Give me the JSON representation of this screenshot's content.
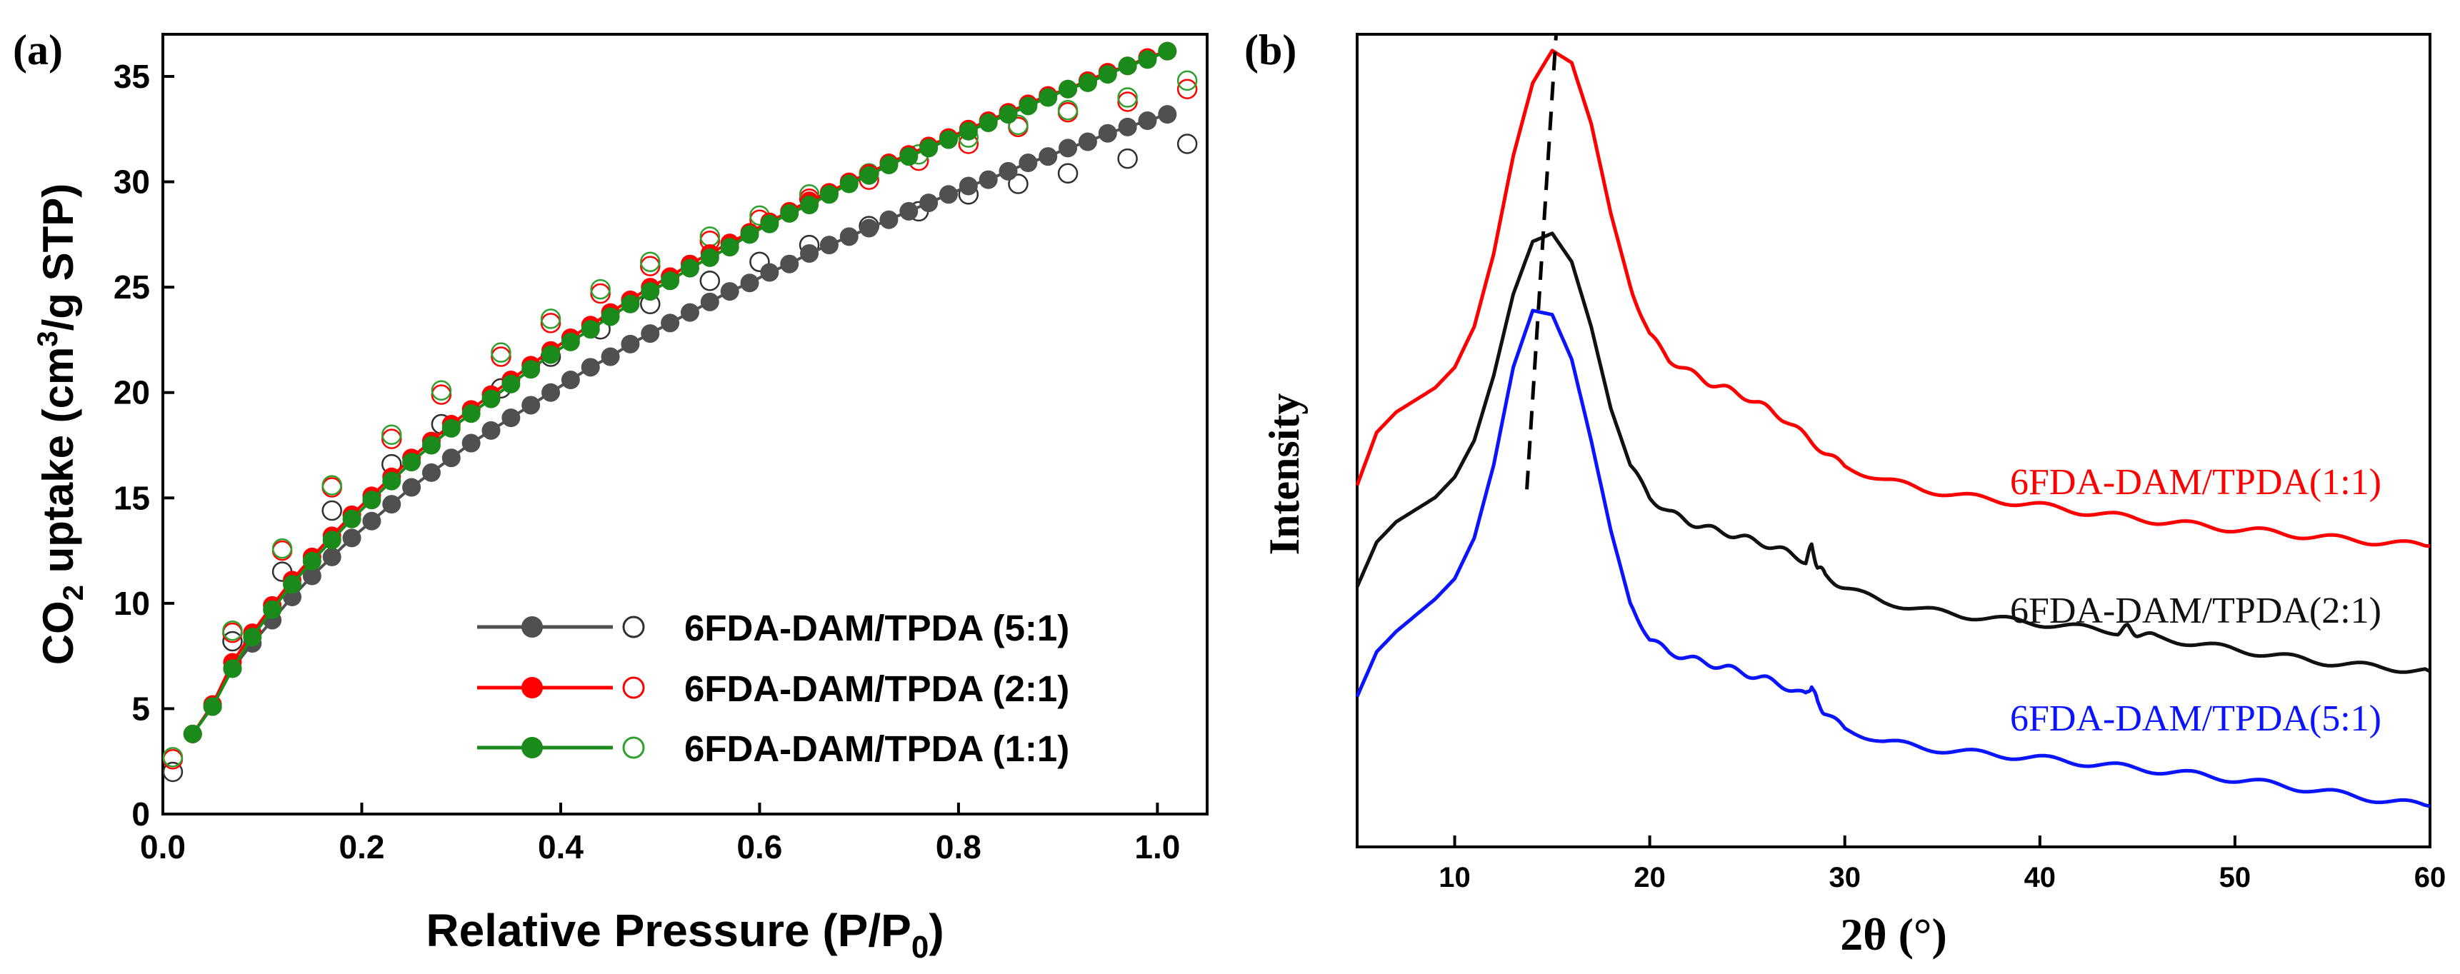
{
  "chart_data": [
    {
      "panel": "(a)",
      "type": "scatter",
      "xlabel_main": "Relative Pressure (P/P",
      "xlabel_sub": "0",
      "xlabel_end": ")",
      "ylabel_pre": "CO",
      "ylabel_sub": "2",
      "ylabel_mid": " uptake (cm",
      "ylabel_sup": "3",
      "ylabel_post": "/g STP)",
      "xlim": [
        0,
        1.05
      ],
      "ylim": [
        0,
        37
      ],
      "xticks": [
        0.0,
        0.2,
        0.4,
        0.6,
        0.8,
        1.0
      ],
      "xtick_labels": [
        "0.0",
        "0.2",
        "0.4",
        "0.6",
        "0.8",
        "1.0"
      ],
      "yticks": [
        0,
        5,
        10,
        15,
        20,
        25,
        30,
        35
      ],
      "ytick_labels": [
        "0",
        "5",
        "10",
        "15",
        "20",
        "25",
        "30",
        "35"
      ],
      "legend_position": "bottom-right",
      "series": [
        {
          "name": "6FDA-DAM/TPDA (5:1)",
          "color": "#505050",
          "open_color": "#303030",
          "adsorption_x": [
            0.03,
            0.05,
            0.07,
            0.09,
            0.11,
            0.13,
            0.15,
            0.17,
            0.19,
            0.21,
            0.23,
            0.25,
            0.27,
            0.29,
            0.31,
            0.33,
            0.35,
            0.37,
            0.39,
            0.41,
            0.43,
            0.45,
            0.47,
            0.49,
            0.51,
            0.53,
            0.55,
            0.57,
            0.59,
            0.61,
            0.63,
            0.65,
            0.67,
            0.69,
            0.71,
            0.73,
            0.75,
            0.77,
            0.79,
            0.81,
            0.83,
            0.85,
            0.87,
            0.89,
            0.91,
            0.93,
            0.95,
            0.97,
            0.99,
            1.01
          ],
          "adsorption_y": [
            3.8,
            5.1,
            6.9,
            8.1,
            9.2,
            10.3,
            11.3,
            12.2,
            13.1,
            13.9,
            14.7,
            15.5,
            16.2,
            16.9,
            17.6,
            18.2,
            18.8,
            19.4,
            20.0,
            20.6,
            21.2,
            21.7,
            22.3,
            22.8,
            23.3,
            23.8,
            24.3,
            24.8,
            25.2,
            25.7,
            26.1,
            26.6,
            27.0,
            27.4,
            27.8,
            28.2,
            28.6,
            29.0,
            29.4,
            29.8,
            30.1,
            30.5,
            30.9,
            31.2,
            31.6,
            31.9,
            32.3,
            32.6,
            32.9,
            33.2
          ],
          "desorption_x": [
            0.01,
            0.07,
            0.12,
            0.17,
            0.23,
            0.28,
            0.34,
            0.39,
            0.44,
            0.49,
            0.55,
            0.6,
            0.65,
            0.71,
            0.76,
            0.81,
            0.86,
            0.91,
            0.97,
            1.03
          ],
          "desorption_y": [
            2.0,
            8.2,
            11.5,
            14.4,
            16.6,
            18.5,
            20.2,
            21.7,
            23.0,
            24.2,
            25.3,
            26.2,
            27.0,
            27.9,
            28.6,
            29.4,
            29.9,
            30.4,
            31.1,
            31.8
          ]
        },
        {
          "name": "6FDA-DAM/TPDA (2:1)",
          "color": "#ff0000",
          "open_color": "#ff0000",
          "adsorption_x": [
            0.03,
            0.05,
            0.07,
            0.09,
            0.11,
            0.13,
            0.15,
            0.17,
            0.19,
            0.21,
            0.23,
            0.25,
            0.27,
            0.29,
            0.31,
            0.33,
            0.35,
            0.37,
            0.39,
            0.41,
            0.43,
            0.45,
            0.47,
            0.49,
            0.51,
            0.53,
            0.55,
            0.57,
            0.59,
            0.61,
            0.63,
            0.65,
            0.67,
            0.69,
            0.71,
            0.73,
            0.75,
            0.77,
            0.79,
            0.81,
            0.83,
            0.85,
            0.87,
            0.89,
            0.91,
            0.93,
            0.95,
            0.97,
            0.99,
            1.01
          ],
          "adsorption_y": [
            3.8,
            5.2,
            7.2,
            8.6,
            9.9,
            11.1,
            12.2,
            13.2,
            14.2,
            15.1,
            16.0,
            16.9,
            17.7,
            18.5,
            19.2,
            19.9,
            20.6,
            21.3,
            22.0,
            22.6,
            23.2,
            23.8,
            24.4,
            25.0,
            25.5,
            26.1,
            26.6,
            27.1,
            27.6,
            28.1,
            28.6,
            29.1,
            29.5,
            30.0,
            30.4,
            30.9,
            31.3,
            31.7,
            32.1,
            32.5,
            32.9,
            33.3,
            33.7,
            34.1,
            34.4,
            34.8,
            35.2,
            35.5,
            35.9,
            36.2
          ],
          "desorption_x": [
            0.01,
            0.07,
            0.12,
            0.17,
            0.23,
            0.28,
            0.34,
            0.39,
            0.44,
            0.49,
            0.55,
            0.6,
            0.65,
            0.71,
            0.76,
            0.81,
            0.86,
            0.91,
            0.97,
            1.03
          ],
          "desorption_y": [
            2.6,
            8.6,
            12.5,
            15.5,
            17.8,
            19.9,
            21.7,
            23.3,
            24.7,
            26.0,
            27.2,
            28.2,
            29.2,
            30.1,
            31.0,
            31.8,
            32.6,
            33.3,
            33.8,
            34.4
          ]
        },
        {
          "name": "6FDA-DAM/TPDA (1:1)",
          "color": "#1a8a1a",
          "open_color": "#2ea02e",
          "adsorption_x": [
            0.03,
            0.05,
            0.07,
            0.09,
            0.11,
            0.13,
            0.15,
            0.17,
            0.19,
            0.21,
            0.23,
            0.25,
            0.27,
            0.29,
            0.31,
            0.33,
            0.35,
            0.37,
            0.39,
            0.41,
            0.43,
            0.45,
            0.47,
            0.49,
            0.51,
            0.53,
            0.55,
            0.57,
            0.59,
            0.61,
            0.63,
            0.65,
            0.67,
            0.69,
            0.71,
            0.73,
            0.75,
            0.77,
            0.79,
            0.81,
            0.83,
            0.85,
            0.87,
            0.89,
            0.91,
            0.93,
            0.95,
            0.97,
            0.99,
            1.01
          ],
          "adsorption_y": [
            3.8,
            5.1,
            6.9,
            8.4,
            9.7,
            10.9,
            12.0,
            13.0,
            14.0,
            14.9,
            15.8,
            16.7,
            17.5,
            18.3,
            19.0,
            19.7,
            20.4,
            21.1,
            21.8,
            22.4,
            23.0,
            23.6,
            24.2,
            24.8,
            25.3,
            25.9,
            26.4,
            26.9,
            27.5,
            28.0,
            28.5,
            28.9,
            29.4,
            29.9,
            30.3,
            30.8,
            31.2,
            31.6,
            32.0,
            32.4,
            32.8,
            33.2,
            33.6,
            34.0,
            34.4,
            34.7,
            35.1,
            35.5,
            35.8,
            36.2
          ],
          "desorption_x": [
            0.01,
            0.07,
            0.12,
            0.17,
            0.23,
            0.28,
            0.34,
            0.39,
            0.44,
            0.49,
            0.55,
            0.6,
            0.65,
            0.71,
            0.76,
            0.81,
            0.86,
            0.91,
            0.97,
            1.03
          ],
          "desorption_y": [
            2.7,
            8.7,
            12.6,
            15.6,
            18.0,
            20.1,
            21.9,
            23.5,
            24.9,
            26.2,
            27.4,
            28.4,
            29.4,
            30.4,
            31.3,
            32.1,
            32.7,
            33.4,
            34.0,
            34.8
          ]
        }
      ]
    },
    {
      "panel": "(b)",
      "type": "line",
      "xlabel": "2θ (°)",
      "ylabel": "Intensity",
      "xlim": [
        5,
        60
      ],
      "ylim": [
        0,
        1
      ],
      "xticks": [
        10,
        20,
        30,
        40,
        50,
        60
      ],
      "xtick_labels": [
        "10",
        "20",
        "30",
        "40",
        "50",
        "60"
      ],
      "peak_guide_x": [
        13.7,
        15.2
      ],
      "series": [
        {
          "name": "6FDA-DAM/TPDA(1:1)",
          "color": "#ff0000",
          "x": [
            5,
            6,
            7,
            8,
            9,
            10,
            11,
            12,
            13,
            14,
            15,
            16,
            17,
            18,
            19,
            20,
            21,
            22,
            23,
            24,
            25,
            26,
            27,
            28,
            29,
            30,
            32,
            34,
            36,
            38,
            40,
            42,
            44,
            46,
            48,
            50,
            52,
            54,
            56,
            58,
            60
          ],
          "y": [
            0.445,
            0.51,
            0.535,
            0.55,
            0.565,
            0.59,
            0.64,
            0.73,
            0.85,
            0.94,
            0.98,
            0.965,
            0.89,
            0.78,
            0.69,
            0.63,
            0.6,
            0.585,
            0.572,
            0.563,
            0.553,
            0.54,
            0.525,
            0.505,
            0.485,
            0.468,
            0.452,
            0.44,
            0.432,
            0.426,
            0.42,
            0.413,
            0.407,
            0.401,
            0.396,
            0.391,
            0.387,
            0.382,
            0.378,
            0.374,
            0.37
          ]
        },
        {
          "name": "6FDA-DAM/TPDA(2:1)",
          "color": "#111111",
          "x": [
            5,
            6,
            7,
            8,
            9,
            10,
            11,
            12,
            13,
            14,
            15,
            16,
            17,
            18,
            19,
            20,
            21,
            22,
            23,
            24,
            25,
            26,
            27,
            28,
            28.3,
            28.6,
            29,
            30,
            32,
            34,
            36,
            38,
            40,
            42,
            44,
            44.5,
            45,
            46,
            48,
            50,
            52,
            54,
            56,
            58,
            60
          ],
          "y": [
            0.32,
            0.375,
            0.4,
            0.415,
            0.43,
            0.455,
            0.5,
            0.58,
            0.68,
            0.745,
            0.755,
            0.72,
            0.64,
            0.54,
            0.47,
            0.43,
            0.412,
            0.4,
            0.392,
            0.386,
            0.379,
            0.372,
            0.363,
            0.352,
            0.37,
            0.345,
            0.335,
            0.318,
            0.302,
            0.292,
            0.285,
            0.28,
            0.275,
            0.27,
            0.265,
            0.27,
            0.262,
            0.258,
            0.25,
            0.243,
            0.236,
            0.229,
            0.224,
            0.22,
            0.216
          ]
        },
        {
          "name": "6FDA-DAM/TPDA(5:1)",
          "color": "#0a14ff",
          "x": [
            5,
            6,
            7,
            8,
            9,
            10,
            11,
            12,
            13,
            14,
            15,
            16,
            17,
            18,
            19,
            20,
            21,
            22,
            23,
            24,
            25,
            26,
            27,
            28,
            28.3,
            28.6,
            29,
            30,
            32,
            34,
            36,
            38,
            40,
            42,
            44,
            46,
            48,
            50,
            52,
            54,
            56,
            58,
            60
          ],
          "y": [
            0.185,
            0.24,
            0.265,
            0.285,
            0.305,
            0.33,
            0.38,
            0.47,
            0.59,
            0.66,
            0.655,
            0.6,
            0.5,
            0.39,
            0.3,
            0.255,
            0.24,
            0.232,
            0.226,
            0.22,
            0.213,
            0.206,
            0.197,
            0.186,
            0.2,
            0.177,
            0.165,
            0.145,
            0.13,
            0.122,
            0.117,
            0.113,
            0.109,
            0.104,
            0.099,
            0.094,
            0.089,
            0.083,
            0.077,
            0.07,
            0.063,
            0.056,
            0.05
          ]
        }
      ]
    }
  ]
}
